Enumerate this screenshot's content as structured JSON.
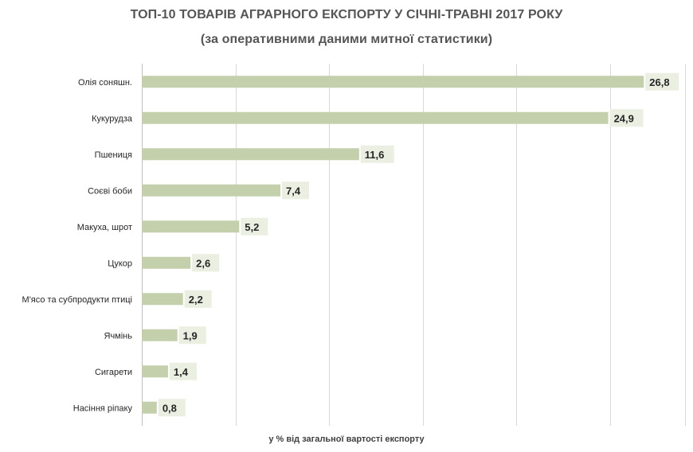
{
  "chart_data": {
    "type": "bar",
    "orientation": "horizontal",
    "title": "ТОП-10 ТОВАРІВ АГРАРНОГО ЕКСПОРТУ У СІЧНІ-ТРАВНІ 2017 РОКУ",
    "subtitle": "(за оперативними даними митної статистики)",
    "xlabel": "у % від  загальної вартості експорту",
    "ylabel": "",
    "categories": [
      "Олія соняшн.",
      "Кукурудза",
      "Пшениця",
      "Соєві боби",
      "Макуха, шрот",
      "Цукор",
      "М'ясо та  субпродукти птиці",
      "Ячмінь",
      "Сигарети",
      "Насіння ріпаку"
    ],
    "values": [
      26.8,
      24.9,
      11.6,
      7.4,
      5.2,
      2.6,
      2.2,
      1.9,
      1.4,
      0.8
    ],
    "xlim": [
      0,
      29
    ],
    "grid": true,
    "legend": "none",
    "colors": {
      "bar": "#c4d0ab",
      "label_bg": "#ebefe1",
      "grid": "#d9d9d9",
      "text": "#262626",
      "title": "#555555"
    }
  }
}
